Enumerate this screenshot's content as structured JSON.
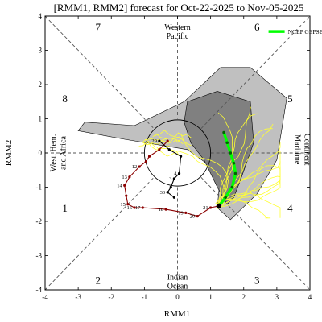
{
  "chart_data": {
    "type": "scatter",
    "title": "[RMM1, RMM2] forecast for Oct-22-2025 to Nov-05-2025",
    "xlabel": "RMM1",
    "ylabel": "RMM2",
    "xlim": [
      -4,
      4
    ],
    "ylim": [
      -4,
      4
    ],
    "xticks": [
      "-4",
      "-3",
      "-2",
      "-1",
      "0",
      "1",
      "2",
      "3",
      "4"
    ],
    "yticks": [
      "-4",
      "-3",
      "-2",
      "-1",
      "0",
      "1",
      "2",
      "3",
      "4"
    ],
    "unit_circle_radius": 1,
    "phases": [
      {
        "label": "1",
        "x": -3.4,
        "y": -1.6
      },
      {
        "label": "2",
        "x": -2.4,
        "y": -3.7
      },
      {
        "label": "3",
        "x": 2.4,
        "y": -3.7
      },
      {
        "label": "4",
        "x": 3.4,
        "y": -1.6
      },
      {
        "label": "5",
        "x": 3.4,
        "y": 1.6
      },
      {
        "label": "6",
        "x": 2.4,
        "y": 3.7
      },
      {
        "label": "7",
        "x": -2.4,
        "y": 3.7
      },
      {
        "label": "8",
        "x": -3.4,
        "y": 1.6
      }
    ],
    "regions": [
      {
        "lines": [
          "Western",
          "Pacific"
        ],
        "x": 0,
        "y": 3.6
      },
      {
        "lines": [
          "Maritime",
          "Continent"
        ],
        "x": 3.55,
        "y": 0.1
      },
      {
        "lines": [
          "Indian",
          "Ocean"
        ],
        "x": 0,
        "y": -3.7
      },
      {
        "lines": [
          "West. Hem.",
          "and Africa"
        ],
        "x": -3.55,
        "y": 0
      }
    ],
    "legend": {
      "label": "NCEP GEPSBC",
      "color": "#00ff00",
      "position": "top-right"
    },
    "series": [
      {
        "role": "observed",
        "color": "#8b0000",
        "points": [
          {
            "label": "",
            "x": -0.3,
            "y": 0.35
          },
          {
            "label": "",
            "x": -0.55,
            "y": 0.1
          },
          {
            "label": "",
            "x": -0.85,
            "y": -0.1
          },
          {
            "label": "",
            "x": -0.95,
            "y": -0.25
          },
          {
            "label": "12",
            "x": -1.15,
            "y": -0.4
          },
          {
            "label": "13",
            "x": -1.45,
            "y": -0.7
          },
          {
            "label": "14",
            "x": -1.6,
            "y": -0.95
          },
          {
            "label": "",
            "x": -1.55,
            "y": -1.25
          },
          {
            "label": "15",
            "x": -1.5,
            "y": -1.5
          },
          {
            "label": "16",
            "x": -1.3,
            "y": -1.6
          },
          {
            "label": "17",
            "x": -1.05,
            "y": -1.6
          },
          {
            "label": "18",
            "x": -0.35,
            "y": -1.65
          },
          {
            "label": "19",
            "x": 0.25,
            "y": -1.75
          },
          {
            "label": "20",
            "x": 0.6,
            "y": -1.85
          },
          {
            "label": "21",
            "x": 1.0,
            "y": -1.6
          },
          {
            "label": "",
            "x": 1.25,
            "y": -1.55
          }
        ]
      },
      {
        "role": "secondary",
        "color": "#000000",
        "points": [
          {
            "label": "29",
            "x": -0.55,
            "y": 0.35
          },
          {
            "label": "",
            "x": -0.25,
            "y": 0.1
          },
          {
            "label": "",
            "x": 0.1,
            "y": -0.1
          },
          {
            "label": "4",
            "x": 0.05,
            "y": -0.6
          },
          {
            "label": "3",
            "x": -0.1,
            "y": -0.75
          },
          {
            "label": "",
            "x": -0.2,
            "y": -1.0
          },
          {
            "label": "30",
            "x": -0.3,
            "y": -1.15
          },
          {
            "label": "",
            "x": -0.1,
            "y": -1.3
          }
        ]
      },
      {
        "role": "ensemble-mean",
        "color": "#00ff00",
        "points": [
          {
            "label": "",
            "x": 1.25,
            "y": -1.55
          },
          {
            "label": "",
            "x": 1.45,
            "y": -1.3
          },
          {
            "label": "",
            "x": 1.65,
            "y": -1.0
          },
          {
            "label": "",
            "x": 1.75,
            "y": -0.6
          },
          {
            "label": "",
            "x": 1.7,
            "y": -0.3
          },
          {
            "label": "",
            "x": 1.6,
            "y": 0.0
          },
          {
            "label": "",
            "x": 1.5,
            "y": 0.3
          },
          {
            "label": "",
            "x": 1.4,
            "y": 0.6
          }
        ]
      },
      {
        "role": "ensemble-members",
        "color": "#ffff33",
        "points": []
      }
    ],
    "spread_regions": [
      {
        "name": "outer",
        "color": "#c0c0c0",
        "polygon": [
          [
            -1.3,
            0.8
          ],
          [
            0.2,
            1.5
          ],
          [
            1.3,
            2.5
          ],
          [
            2.2,
            2.5
          ],
          [
            3.3,
            1.6
          ],
          [
            3.0,
            -0.2
          ],
          [
            2.4,
            -1.2
          ],
          [
            1.6,
            -1.95
          ],
          [
            1.2,
            -1.6
          ],
          [
            1.3,
            -0.6
          ],
          [
            0.3,
            0.1
          ],
          [
            -1.6,
            0.4
          ],
          [
            -3.0,
            0.65
          ],
          [
            -2.8,
            0.9
          ]
        ]
      },
      {
        "name": "inner",
        "color": "#808080",
        "polygon": [
          [
            0.3,
            1.5
          ],
          [
            1.2,
            1.8
          ],
          [
            2.2,
            1.5
          ],
          [
            2.3,
            0.3
          ],
          [
            1.9,
            -0.8
          ],
          [
            1.7,
            -1.3
          ],
          [
            1.5,
            -1.5
          ],
          [
            1.2,
            -1.0
          ],
          [
            0.8,
            -0.2
          ],
          [
            0.4,
            0.3
          ],
          [
            0.2,
            0.9
          ]
        ]
      }
    ]
  }
}
